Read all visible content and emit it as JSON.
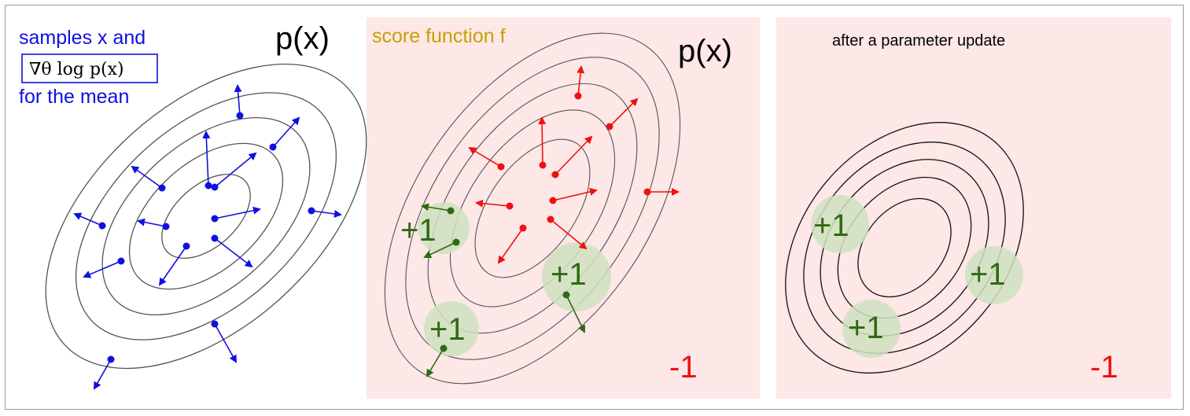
{
  "colors": {
    "blue": "#1010e0",
    "red": "#ee1111",
    "green": "#2e6b12",
    "green_fill": "#cfe0c0",
    "panel_bg": "#fde7e7",
    "gold": "#c8a000",
    "contour": "#555555"
  },
  "panel1": {
    "title": "p(x)",
    "caption_line1": "samples x and",
    "formula": "∇θ log p(x)",
    "caption_line3": "for the mean"
  },
  "panel2": {
    "title": "p(x)",
    "caption": "score function f",
    "minus_label": "-1",
    "plus_labels": [
      "+1",
      "+1",
      "+1"
    ]
  },
  "panel3": {
    "caption": "after a parameter update",
    "minus_label": "-1",
    "plus_labels": [
      "+1",
      "+1",
      "+1"
    ]
  }
}
